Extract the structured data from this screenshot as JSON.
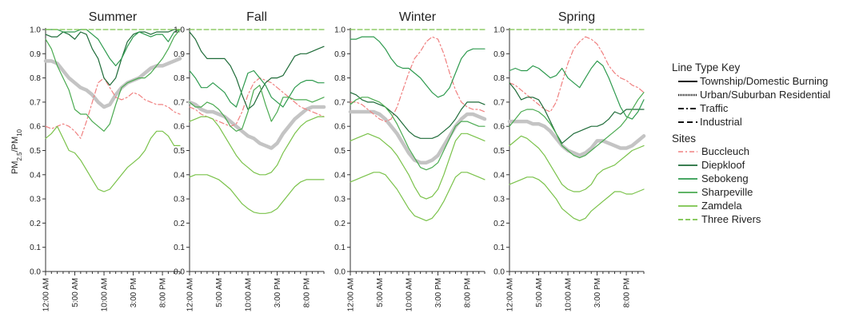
{
  "chart_data": {
    "type": "line",
    "ylabel": "PM2.5/PM10",
    "ylabel_parts": {
      "a": "PM",
      "b": "2.5",
      "c": "/PM",
      "d": "10"
    },
    "ylim": [
      0,
      1.0
    ],
    "yticks": [
      "0.0",
      "0.1",
      "0.2",
      "0.3",
      "0.4",
      "0.5",
      "0.6",
      "0.7",
      "0.8",
      "0.9",
      "1.0"
    ],
    "xtick_labels": [
      "12:00 AM",
      "5:00 AM",
      "10:00 AM",
      "3:00 PM",
      "8:00 PM"
    ],
    "xtick_hours": [
      0,
      5,
      10,
      15,
      20
    ],
    "hours": [
      0,
      1,
      2,
      3,
      4,
      5,
      6,
      7,
      8,
      9,
      10,
      11,
      12,
      13,
      14,
      15,
      16,
      17,
      18,
      19,
      20,
      21,
      22,
      23
    ],
    "grid": false,
    "legend_position": "right",
    "legend": {
      "line_type_title": "Line Type Key",
      "line_types": [
        {
          "label": "Township/Domestic Burning",
          "dash": "solid"
        },
        {
          "label": "Urban/Suburban Residential",
          "dash": "dotted"
        },
        {
          "label": "Traffic",
          "dash": "dashdot"
        },
        {
          "label": "Industrial",
          "dash": "dashed"
        }
      ],
      "sites_title": "Sites"
    },
    "sites": [
      {
        "name": "Buccleuch",
        "color": "#f08080",
        "dash": "dashdot"
      },
      {
        "name": "Diepkloof",
        "color": "#1e6b38",
        "dash": "solid"
      },
      {
        "name": "Sebokeng",
        "color": "#2e9a4e",
        "dash": "solid"
      },
      {
        "name": "Sharpeville",
        "color": "#4aaa50",
        "dash": "solid"
      },
      {
        "name": "Zamdela",
        "color": "#7ac24a",
        "dash": "solid"
      },
      {
        "name": "Three Rivers",
        "color": "#7ac24a",
        "dash": "dashed"
      }
    ],
    "mean_color": "#c4c4c4",
    "panels": [
      {
        "title": "Summer",
        "series": [
          {
            "name": "Buccleuch",
            "values": [
              0.6,
              0.59,
              0.6,
              0.61,
              0.6,
              0.58,
              0.55,
              0.62,
              0.7,
              0.78,
              0.8,
              0.76,
              0.72,
              0.71,
              0.72,
              0.74,
              0.73,
              0.71,
              0.7,
              0.69,
              0.69,
              0.68,
              0.66,
              0.65
            ]
          },
          {
            "name": "Diepkloof",
            "values": [
              0.98,
              0.97,
              0.97,
              0.99,
              0.98,
              0.96,
              0.99,
              0.98,
              0.92,
              0.88,
              0.8,
              0.77,
              0.8,
              0.88,
              0.95,
              0.98,
              0.99,
              0.99,
              0.98,
              0.99,
              0.99,
              0.99,
              1.0,
              1.0
            ]
          },
          {
            "name": "Sebokeng",
            "values": [
              1.0,
              1.0,
              1.0,
              0.99,
              0.99,
              0.99,
              1.0,
              1.0,
              0.98,
              0.96,
              0.92,
              0.88,
              0.85,
              0.88,
              0.93,
              0.97,
              0.99,
              0.98,
              0.97,
              0.98,
              0.98,
              0.95,
              0.99,
              1.0
            ]
          },
          {
            "name": "Sharpeville",
            "values": [
              0.96,
              0.92,
              0.85,
              0.8,
              0.75,
              0.67,
              0.65,
              0.65,
              0.62,
              0.6,
              0.58,
              0.61,
              0.69,
              0.76,
              0.78,
              0.79,
              0.8,
              0.8,
              0.82,
              0.85,
              0.88,
              0.92,
              0.97,
              1.0
            ]
          },
          {
            "name": "Zamdela",
            "values": [
              0.55,
              0.57,
              0.6,
              0.55,
              0.5,
              0.49,
              0.46,
              0.42,
              0.38,
              0.34,
              0.33,
              0.34,
              0.37,
              0.4,
              0.43,
              0.45,
              0.47,
              0.5,
              0.55,
              0.58,
              0.58,
              0.56,
              0.52,
              0.52
            ]
          },
          {
            "name": "Three Rivers",
            "values": [
              1.0,
              1.0,
              1.0,
              1.0,
              1.0,
              1.0,
              1.0,
              1.0,
              1.0,
              1.0,
              1.0,
              1.0,
              1.0,
              1.0,
              1.0,
              1.0,
              1.0,
              1.0,
              1.0,
              1.0,
              1.0,
              1.0,
              1.0,
              1.0
            ]
          },
          {
            "name": "Mean",
            "values": [
              0.87,
              0.87,
              0.86,
              0.83,
              0.8,
              0.78,
              0.76,
              0.75,
              0.73,
              0.7,
              0.68,
              0.69,
              0.73,
              0.76,
              0.78,
              0.79,
              0.8,
              0.82,
              0.84,
              0.85,
              0.85,
              0.86,
              0.87,
              0.88
            ]
          }
        ]
      },
      {
        "title": "Fall",
        "series": [
          {
            "name": "Buccleuch",
            "values": [
              0.68,
              0.67,
              0.65,
              0.64,
              0.63,
              0.62,
              0.61,
              0.6,
              0.61,
              0.66,
              0.73,
              0.78,
              0.8,
              0.79,
              0.78,
              0.76,
              0.74,
              0.72,
              0.7,
              0.68,
              0.67,
              0.66,
              0.65,
              0.64
            ]
          },
          {
            "name": "Diepkloof",
            "values": [
              0.99,
              0.96,
              0.91,
              0.88,
              0.88,
              0.88,
              0.88,
              0.85,
              0.8,
              0.73,
              0.67,
              0.69,
              0.74,
              0.78,
              0.8,
              0.8,
              0.81,
              0.85,
              0.89,
              0.9,
              0.9,
              0.91,
              0.92,
              0.93
            ]
          },
          {
            "name": "Sebokeng",
            "values": [
              0.83,
              0.8,
              0.76,
              0.76,
              0.78,
              0.76,
              0.74,
              0.7,
              0.68,
              0.75,
              0.82,
              0.83,
              0.8,
              0.77,
              0.72,
              0.7,
              0.68,
              0.72,
              0.76,
              0.78,
              0.79,
              0.79,
              0.78,
              0.78
            ]
          },
          {
            "name": "Sharpeville",
            "values": [
              0.7,
              0.68,
              0.68,
              0.7,
              0.69,
              0.67,
              0.64,
              0.6,
              0.58,
              0.59,
              0.66,
              0.75,
              0.77,
              0.69,
              0.62,
              0.66,
              0.72,
              0.72,
              0.71,
              0.71,
              0.71,
              0.7,
              0.71,
              0.72
            ]
          },
          {
            "name": "Zamdela",
            "values": [
              0.62,
              0.63,
              0.64,
              0.64,
              0.63,
              0.6,
              0.56,
              0.52,
              0.48,
              0.45,
              0.43,
              0.41,
              0.4,
              0.4,
              0.41,
              0.44,
              0.49,
              0.53,
              0.57,
              0.6,
              0.62,
              0.63,
              0.64,
              0.64
            ]
          },
          {
            "name": "Zamdela",
            "values": [
              0.39,
              0.4,
              0.4,
              0.4,
              0.39,
              0.38,
              0.36,
              0.34,
              0.31,
              0.28,
              0.26,
              0.245,
              0.24,
              0.24,
              0.245,
              0.26,
              0.29,
              0.32,
              0.35,
              0.37,
              0.38,
              0.38,
              0.38,
              0.38
            ]
          },
          {
            "name": "Three Rivers",
            "values": [
              1.0,
              1.0,
              1.0,
              1.0,
              1.0,
              1.0,
              1.0,
              1.0,
              1.0,
              1.0,
              1.0,
              1.0,
              1.0,
              1.0,
              1.0,
              1.0,
              1.0,
              1.0,
              1.0,
              1.0,
              1.0,
              1.0,
              1.0,
              1.0
            ]
          },
          {
            "name": "Mean",
            "values": [
              0.7,
              0.69,
              0.67,
              0.66,
              0.66,
              0.65,
              0.64,
              0.62,
              0.6,
              0.58,
              0.56,
              0.55,
              0.53,
              0.52,
              0.51,
              0.53,
              0.57,
              0.6,
              0.63,
              0.65,
              0.67,
              0.68,
              0.68,
              0.68
            ]
          }
        ]
      },
      {
        "title": "Winter",
        "series": [
          {
            "name": "Buccleuch",
            "values": [
              0.7,
              0.7,
              0.69,
              0.67,
              0.65,
              0.63,
              0.62,
              0.63,
              0.68,
              0.75,
              0.82,
              0.88,
              0.91,
              0.95,
              0.97,
              0.96,
              0.9,
              0.82,
              0.75,
              0.7,
              0.68,
              0.67,
              0.67,
              0.66
            ]
          },
          {
            "name": "Diepkloof",
            "values": [
              0.74,
              0.73,
              0.71,
              0.7,
              0.7,
              0.69,
              0.68,
              0.66,
              0.64,
              0.61,
              0.58,
              0.56,
              0.55,
              0.55,
              0.55,
              0.56,
              0.58,
              0.6,
              0.63,
              0.67,
              0.7,
              0.7,
              0.7,
              0.69
            ]
          },
          {
            "name": "Sebokeng",
            "values": [
              0.96,
              0.96,
              0.97,
              0.97,
              0.97,
              0.95,
              0.92,
              0.88,
              0.85,
              0.84,
              0.84,
              0.82,
              0.8,
              0.77,
              0.74,
              0.72,
              0.73,
              0.76,
              0.82,
              0.88,
              0.91,
              0.92,
              0.92,
              0.92
            ]
          },
          {
            "name": "Sharpeville",
            "values": [
              0.69,
              0.71,
              0.72,
              0.72,
              0.71,
              0.7,
              0.68,
              0.65,
              0.61,
              0.56,
              0.51,
              0.47,
              0.43,
              0.42,
              0.43,
              0.45,
              0.5,
              0.55,
              0.6,
              0.62,
              0.62,
              0.61,
              0.6,
              0.6
            ]
          },
          {
            "name": "Zamdela",
            "values": [
              0.54,
              0.55,
              0.56,
              0.57,
              0.56,
              0.55,
              0.53,
              0.51,
              0.48,
              0.44,
              0.4,
              0.35,
              0.31,
              0.3,
              0.31,
              0.34,
              0.4,
              0.47,
              0.54,
              0.57,
              0.57,
              0.56,
              0.55,
              0.54
            ]
          },
          {
            "name": "Zamdela",
            "values": [
              0.37,
              0.38,
              0.39,
              0.4,
              0.41,
              0.41,
              0.4,
              0.37,
              0.34,
              0.3,
              0.26,
              0.23,
              0.22,
              0.21,
              0.22,
              0.25,
              0.29,
              0.34,
              0.39,
              0.41,
              0.41,
              0.4,
              0.39,
              0.38
            ]
          },
          {
            "name": "Three Rivers",
            "values": [
              1.0,
              1.0,
              1.0,
              1.0,
              1.0,
              1.0,
              1.0,
              1.0,
              1.0,
              1.0,
              1.0,
              1.0,
              1.0,
              1.0,
              1.0,
              1.0,
              1.0,
              1.0,
              1.0,
              1.0,
              1.0,
              1.0,
              1.0,
              1.0
            ]
          },
          {
            "name": "Mean",
            "values": [
              0.66,
              0.66,
              0.66,
              0.66,
              0.66,
              0.65,
              0.63,
              0.6,
              0.57,
              0.53,
              0.49,
              0.46,
              0.45,
              0.45,
              0.46,
              0.48,
              0.52,
              0.56,
              0.6,
              0.63,
              0.65,
              0.65,
              0.64,
              0.63
            ]
          }
        ]
      },
      {
        "title": "Spring",
        "series": [
          {
            "name": "Buccleuch",
            "values": [
              0.78,
              0.77,
              0.75,
              0.73,
              0.71,
              0.69,
              0.67,
              0.66,
              0.7,
              0.78,
              0.86,
              0.92,
              0.95,
              0.97,
              0.96,
              0.94,
              0.9,
              0.85,
              0.82,
              0.8,
              0.79,
              0.77,
              0.76,
              0.74
            ]
          },
          {
            "name": "Diepkloof",
            "values": [
              0.78,
              0.75,
              0.71,
              0.72,
              0.72,
              0.71,
              0.67,
              0.62,
              0.57,
              0.53,
              0.55,
              0.57,
              0.58,
              0.59,
              0.6,
              0.6,
              0.61,
              0.63,
              0.66,
              0.65,
              0.67,
              0.67,
              0.67,
              0.67
            ]
          },
          {
            "name": "Sebokeng",
            "values": [
              0.83,
              0.84,
              0.83,
              0.83,
              0.85,
              0.84,
              0.82,
              0.8,
              0.81,
              0.84,
              0.8,
              0.78,
              0.76,
              0.8,
              0.84,
              0.87,
              0.85,
              0.8,
              0.74,
              0.68,
              0.64,
              0.63,
              0.66,
              0.71
            ]
          },
          {
            "name": "Sharpeville",
            "values": [
              0.6,
              0.63,
              0.66,
              0.67,
              0.67,
              0.66,
              0.64,
              0.61,
              0.57,
              0.52,
              0.5,
              0.48,
              0.47,
              0.48,
              0.5,
              0.52,
              0.54,
              0.56,
              0.58,
              0.6,
              0.63,
              0.67,
              0.71,
              0.74
            ]
          },
          {
            "name": "Zamdela",
            "values": [
              0.52,
              0.54,
              0.56,
              0.55,
              0.53,
              0.51,
              0.48,
              0.44,
              0.4,
              0.36,
              0.34,
              0.33,
              0.33,
              0.34,
              0.36,
              0.4,
              0.42,
              0.43,
              0.44,
              0.46,
              0.48,
              0.5,
              0.51,
              0.52
            ]
          },
          {
            "name": "Zamdela",
            "values": [
              0.36,
              0.37,
              0.38,
              0.39,
              0.39,
              0.38,
              0.36,
              0.33,
              0.3,
              0.26,
              0.24,
              0.22,
              0.21,
              0.22,
              0.25,
              0.27,
              0.29,
              0.31,
              0.33,
              0.33,
              0.32,
              0.32,
              0.33,
              0.34
            ]
          },
          {
            "name": "Three Rivers",
            "values": [
              1.0,
              1.0,
              1.0,
              1.0,
              1.0,
              1.0,
              1.0,
              1.0,
              1.0,
              1.0,
              1.0,
              1.0,
              1.0,
              1.0,
              1.0,
              1.0,
              1.0,
              1.0,
              1.0,
              1.0,
              1.0,
              1.0,
              1.0,
              1.0
            ]
          },
          {
            "name": "Mean",
            "values": [
              0.62,
              0.62,
              0.62,
              0.62,
              0.61,
              0.61,
              0.6,
              0.58,
              0.55,
              0.52,
              0.5,
              0.49,
              0.48,
              0.49,
              0.51,
              0.54,
              0.54,
              0.53,
              0.52,
              0.51,
              0.51,
              0.52,
              0.54,
              0.56
            ]
          }
        ]
      }
    ]
  }
}
